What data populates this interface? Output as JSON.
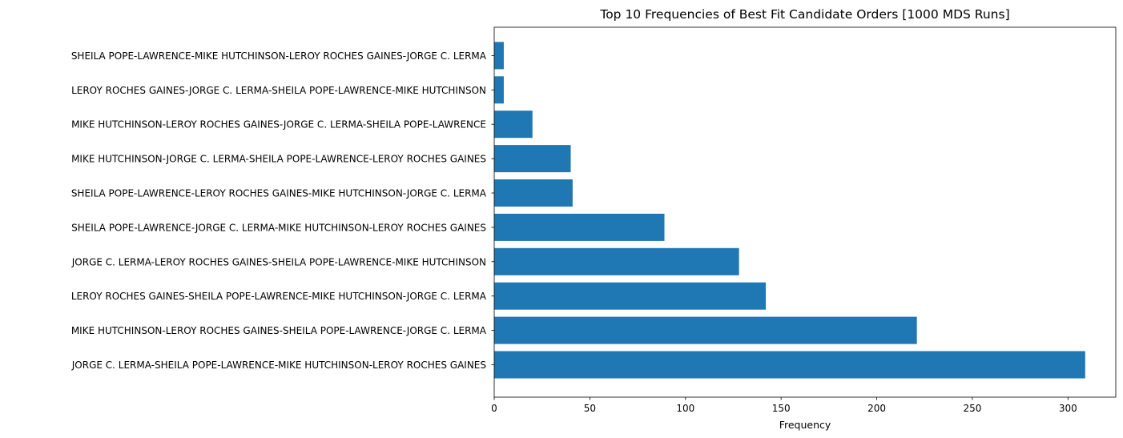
{
  "chart_data": {
    "type": "bar",
    "orientation": "horizontal",
    "title": "Top 10 Frequencies of Best Fit Candidate Orders [1000 MDS Runs]",
    "xlabel": "Frequency",
    "ylabel": "",
    "xlim": [
      0,
      325
    ],
    "xticks": [
      0,
      50,
      100,
      150,
      200,
      250,
      300
    ],
    "grid": false,
    "bar_color": "#1f77b4",
    "categories": [
      "JORGE C. LERMA-SHEILA POPE-LAWRENCE-MIKE HUTCHINSON-LEROY ROCHES GAINES",
      "MIKE HUTCHINSON-LEROY ROCHES GAINES-SHEILA POPE-LAWRENCE-JORGE C. LERMA",
      "LEROY ROCHES GAINES-SHEILA POPE-LAWRENCE-MIKE HUTCHINSON-JORGE C. LERMA",
      "JORGE C. LERMA-LEROY ROCHES GAINES-SHEILA POPE-LAWRENCE-MIKE HUTCHINSON",
      "SHEILA POPE-LAWRENCE-JORGE C. LERMA-MIKE HUTCHINSON-LEROY ROCHES GAINES",
      "SHEILA POPE-LAWRENCE-LEROY ROCHES GAINES-MIKE HUTCHINSON-JORGE C. LERMA",
      "MIKE HUTCHINSON-JORGE C. LERMA-SHEILA POPE-LAWRENCE-LEROY ROCHES GAINES",
      "MIKE HUTCHINSON-LEROY ROCHES GAINES-JORGE C. LERMA-SHEILA POPE-LAWRENCE",
      "LEROY ROCHES GAINES-JORGE C. LERMA-SHEILA POPE-LAWRENCE-MIKE HUTCHINSON",
      "SHEILA POPE-LAWRENCE-MIKE HUTCHINSON-LEROY ROCHES GAINES-JORGE C. LERMA"
    ],
    "values": [
      309,
      221,
      142,
      128,
      89,
      41,
      40,
      20,
      5,
      5
    ]
  }
}
